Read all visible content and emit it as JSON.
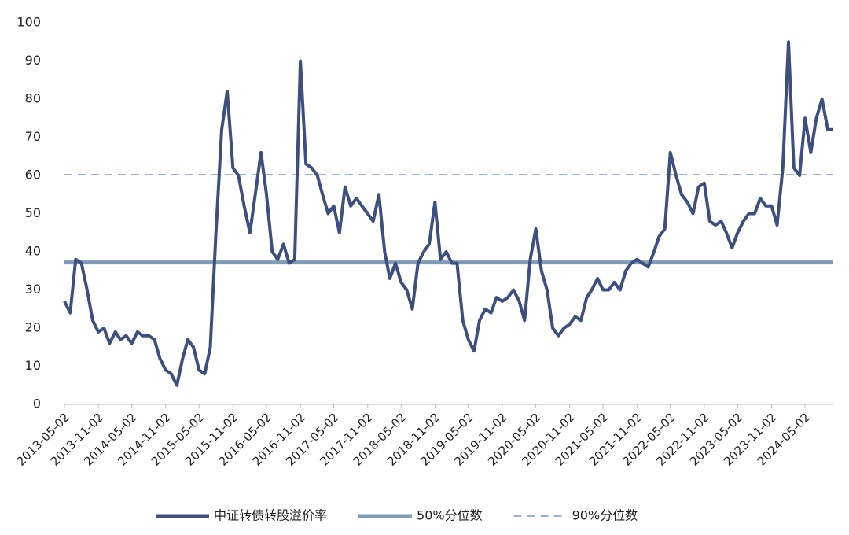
{
  "chart_data": {
    "type": "line",
    "x": [
      "2013-05-02",
      "2013-06-02",
      "2013-07-02",
      "2013-08-02",
      "2013-09-02",
      "2013-10-02",
      "2013-11-02",
      "2013-12-02",
      "2014-01-02",
      "2014-02-02",
      "2014-03-02",
      "2014-04-02",
      "2014-05-02",
      "2014-06-02",
      "2014-07-02",
      "2014-08-02",
      "2014-09-02",
      "2014-10-02",
      "2014-11-02",
      "2014-12-02",
      "2015-01-02",
      "2015-02-02",
      "2015-03-02",
      "2015-04-02",
      "2015-05-02",
      "2015-06-02",
      "2015-07-02",
      "2015-08-02",
      "2015-09-02",
      "2015-10-02",
      "2015-11-02",
      "2015-12-02",
      "2016-01-02",
      "2016-02-02",
      "2016-03-02",
      "2016-04-02",
      "2016-05-02",
      "2016-06-02",
      "2016-07-02",
      "2016-08-02",
      "2016-09-02",
      "2016-10-02",
      "2016-11-02",
      "2016-12-02",
      "2017-01-02",
      "2017-02-02",
      "2017-03-02",
      "2017-04-02",
      "2017-05-02",
      "2017-06-02",
      "2017-07-02",
      "2017-08-02",
      "2017-09-02",
      "2017-10-02",
      "2017-11-02",
      "2017-12-02",
      "2018-01-02",
      "2018-02-02",
      "2018-03-02",
      "2018-04-02",
      "2018-05-02",
      "2018-06-02",
      "2018-07-02",
      "2018-08-02",
      "2018-09-02",
      "2018-10-02",
      "2018-11-02",
      "2018-12-02",
      "2019-01-02",
      "2019-02-02",
      "2019-03-02",
      "2019-04-02",
      "2019-05-02",
      "2019-06-02",
      "2019-07-02",
      "2019-08-02",
      "2019-09-02",
      "2019-10-02",
      "2019-11-02",
      "2019-12-02",
      "2020-01-02",
      "2020-02-02",
      "2020-03-02",
      "2020-04-02",
      "2020-05-02",
      "2020-06-02",
      "2020-07-02",
      "2020-08-02",
      "2020-09-02",
      "2020-10-02",
      "2020-11-02",
      "2020-12-02",
      "2021-01-02",
      "2021-02-02",
      "2021-03-02",
      "2021-04-02",
      "2021-05-02",
      "2021-06-02",
      "2021-07-02",
      "2021-08-02",
      "2021-09-02",
      "2021-10-02",
      "2021-11-02",
      "2021-12-02",
      "2022-01-02",
      "2022-02-02",
      "2022-03-02",
      "2022-04-02",
      "2022-05-02",
      "2022-06-02",
      "2022-07-02",
      "2022-08-02",
      "2022-09-02",
      "2022-10-02",
      "2022-11-02",
      "2022-12-02",
      "2023-01-02",
      "2023-02-02",
      "2023-03-02",
      "2023-04-02",
      "2023-05-02",
      "2023-06-02",
      "2023-07-02",
      "2023-08-02",
      "2023-09-02",
      "2023-10-02",
      "2023-11-02",
      "2023-12-02",
      "2024-01-02",
      "2024-02-02",
      "2024-03-02",
      "2024-04-02",
      "2024-05-02",
      "2024-06-02",
      "2024-07-02",
      "2024-08-02",
      "2024-09-02",
      "2024-10-02"
    ],
    "series": [
      {
        "name": "中证转债转股溢价率",
        "color": "#3d4f7e",
        "values": [
          27,
          24,
          38,
          37,
          30,
          22,
          19,
          20,
          16,
          19,
          17,
          18,
          16,
          19,
          18,
          18,
          17,
          12,
          9,
          8,
          5,
          12,
          17,
          15,
          9,
          8,
          15,
          45,
          72,
          82,
          62,
          60,
          52,
          45,
          55,
          66,
          55,
          40,
          38,
          42,
          37,
          38,
          90,
          63,
          62,
          60,
          55,
          50,
          52,
          45,
          57,
          52,
          54,
          52,
          50,
          48,
          55,
          40,
          33,
          37,
          32,
          30,
          25,
          37,
          40,
          42,
          53,
          38,
          40,
          37,
          37,
          22,
          17,
          14,
          22,
          25,
          24,
          28,
          27,
          28,
          30,
          27,
          22,
          38,
          46,
          35,
          30,
          20,
          18,
          20,
          21,
          23,
          22,
          28,
          30,
          33,
          30,
          30,
          32,
          30,
          35,
          37,
          38,
          37,
          36,
          40,
          44,
          46,
          66,
          60,
          55,
          53,
          50,
          57,
          58,
          48,
          47,
          48,
          45,
          41,
          45,
          48,
          50,
          50,
          54,
          52,
          52,
          47,
          62,
          95,
          62,
          60,
          75,
          66,
          75,
          80,
          72,
          72
        ]
      }
    ],
    "hlines": [
      {
        "name": "50%分位数",
        "value": 37.2,
        "color": "#7f9bb5",
        "dashed": false
      },
      {
        "name": "90%分位数",
        "value": 60.2,
        "color": "#9fb0d8",
        "dashed": true
      }
    ],
    "xlim": [
      "2013-05-02",
      "2024-10-02"
    ],
    "xticks": [
      "2013-05-02",
      "2013-11-02",
      "2014-05-02",
      "2014-11-02",
      "2015-05-02",
      "2015-11-02",
      "2016-05-02",
      "2016-11-02",
      "2017-05-02",
      "2017-11-02",
      "2018-05-02",
      "2018-11-02",
      "2019-05-02",
      "2019-11-02",
      "2020-05-02",
      "2020-11-02",
      "2021-05-02",
      "2021-11-02",
      "2022-05-02",
      "2022-11-02",
      "2023-05-02",
      "2023-11-02",
      "2024-05-02"
    ],
    "ylim": [
      0,
      100
    ],
    "yticks": [
      0,
      10,
      20,
      30,
      40,
      50,
      60,
      70,
      80,
      90,
      100
    ]
  }
}
